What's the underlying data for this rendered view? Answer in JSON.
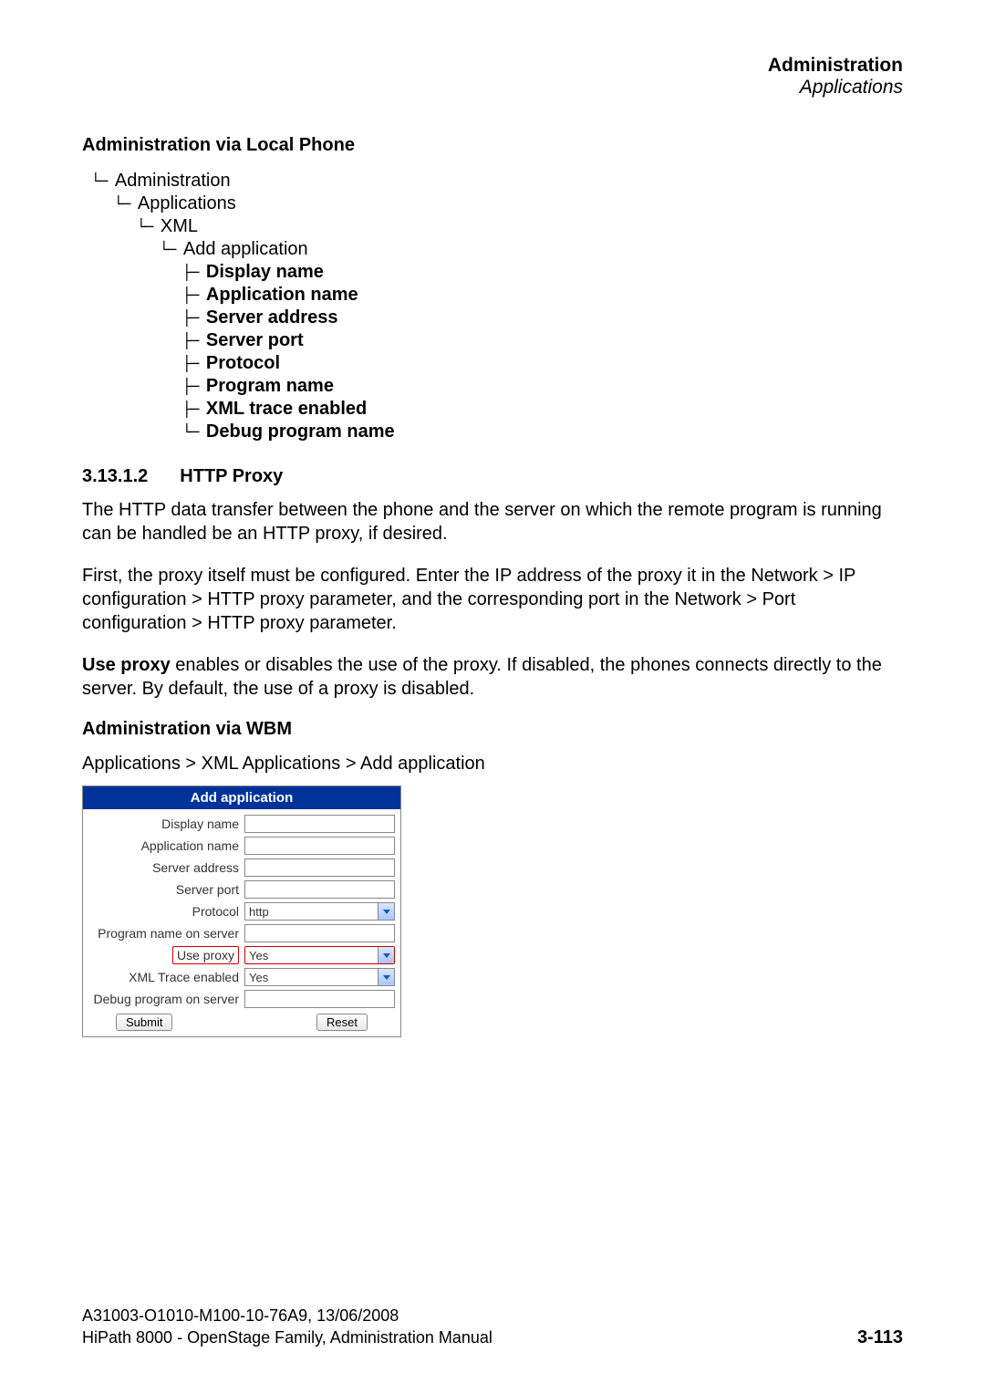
{
  "header": {
    "title": "Administration",
    "subtitle": "Applications"
  },
  "section1": {
    "heading": "Administration via Local Phone"
  },
  "tree": {
    "n1": "Administration",
    "n2": "Applications",
    "n3": "XML",
    "n4": "Add application",
    "c1": "Display name",
    "c2": "Application name",
    "c3": "Server address",
    "c4": "Server port",
    "c5": "Protocol",
    "c6": "Program name",
    "c7": "XML trace enabled",
    "c8": "Debug program name"
  },
  "subsection": {
    "number": "3.13.1.2",
    "title": "HTTP Proxy"
  },
  "para1": "The HTTP data transfer between the phone and the server on which the remote program is running can be handled be an HTTP proxy, if desired.",
  "para2": "First, the proxy itself must be configured. Enter the IP address of the proxy it in the Network > IP configuration > HTTP proxy parameter, and the corresponding port in the Network > Port configuration > HTTP proxy parameter.",
  "para3_bold": "Use proxy",
  "para3_rest": " enables or disables the use of the proxy. If disabled, the phones connects directly to the server. By default, the use of a proxy is disabled.",
  "section2": {
    "heading": "Administration via WBM",
    "breadcrumb": "Applications > XML Applications > Add application"
  },
  "form": {
    "title": "Add application",
    "labels": {
      "display_name": "Display name",
      "application_name": "Application name",
      "server_address": "Server address",
      "server_port": "Server port",
      "protocol": "Protocol",
      "program_name": "Program name on server",
      "use_proxy": "Use proxy",
      "xml_trace": "XML Trace enabled",
      "debug_program": "Debug program on server"
    },
    "values": {
      "protocol": "http",
      "use_proxy": "Yes",
      "xml_trace": "Yes"
    },
    "buttons": {
      "submit": "Submit",
      "reset": "Reset"
    }
  },
  "footer": {
    "line1": "A31003-O1010-M100-10-76A9, 13/06/2008",
    "line2": "HiPath 8000 - OpenStage Family, Administration Manual",
    "page": "3-113"
  }
}
